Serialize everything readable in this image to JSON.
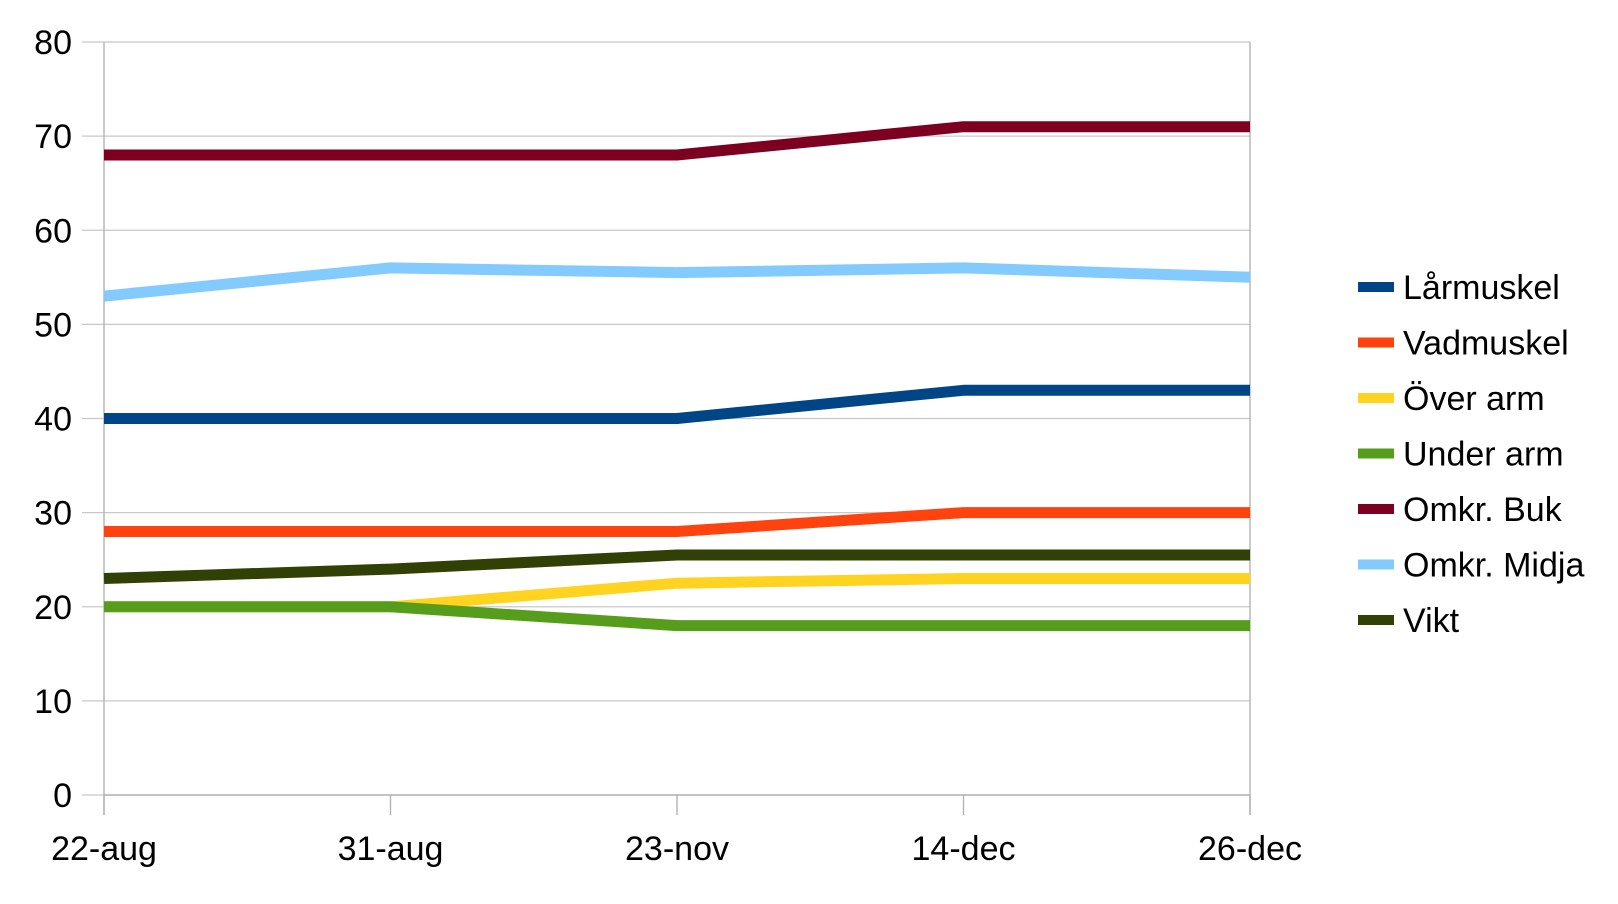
{
  "chart_data": {
    "type": "line",
    "title": "",
    "xlabel": "",
    "ylabel": "",
    "categories": [
      "22-aug",
      "31-aug",
      "23-nov",
      "14-dec",
      "26-dec"
    ],
    "ylim": [
      0,
      80
    ],
    "yticks": [
      0,
      10,
      20,
      30,
      40,
      50,
      60,
      70,
      80
    ],
    "grid": "horizontal",
    "legend_position": "right",
    "series": [
      {
        "name": "Lårmuskel",
        "color": "#004586",
        "values": [
          40,
          40,
          40,
          43,
          43
        ]
      },
      {
        "name": "Vadmuskel",
        "color": "#ff420e",
        "values": [
          28,
          28,
          28,
          30,
          30
        ]
      },
      {
        "name": "Över arm",
        "color": "#ffd320",
        "values": [
          20,
          20,
          22.5,
          23,
          23
        ]
      },
      {
        "name": "Under arm",
        "color": "#579d1c",
        "values": [
          20,
          20,
          18,
          18,
          18
        ]
      },
      {
        "name": "Omkr. Buk",
        "color": "#7e0021",
        "values": [
          68,
          68,
          68,
          71,
          71
        ]
      },
      {
        "name": "Omkr. Midja",
        "color": "#83caff",
        "values": [
          53,
          56,
          55.5,
          56,
          55
        ]
      },
      {
        "name": "Vikt",
        "color": "#314004",
        "values": [
          23,
          24,
          25.5,
          25.5,
          25.5
        ]
      }
    ]
  }
}
